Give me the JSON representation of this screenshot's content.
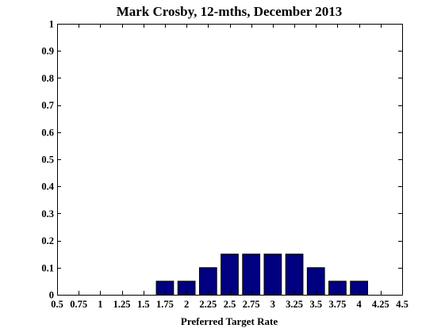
{
  "chart_data": {
    "type": "bar",
    "title": "Mark Crosby, 12-mths, December 2013",
    "xlabel": "Preferred Target Rate",
    "ylabel": "",
    "xlim": [
      0.5,
      4.5
    ],
    "ylim": [
      0,
      1
    ],
    "xticks": [
      0.5,
      0.75,
      1,
      1.25,
      1.5,
      1.75,
      2,
      2.25,
      2.5,
      2.75,
      3,
      3.25,
      3.5,
      3.75,
      4,
      4.25,
      4.5
    ],
    "xtick_labels": [
      "0.5",
      "0.75",
      "1",
      "1.25",
      "1.5",
      "1.75",
      "2",
      "2.25",
      "2.5",
      "2.75",
      "3",
      "3.25",
      "3.5",
      "3.75",
      "4",
      "4.25",
      "4.5"
    ],
    "yticks": [
      0,
      0.1,
      0.2,
      0.3,
      0.4,
      0.5,
      0.6,
      0.7,
      0.8,
      0.9,
      1
    ],
    "ytick_labels": [
      "0",
      "0.1",
      "0.2",
      "0.3",
      "0.4",
      "0.5",
      "0.6",
      "0.7",
      "0.8",
      "0.9",
      "1"
    ],
    "categories": [
      1.75,
      2,
      2.25,
      2.5,
      2.75,
      3,
      3.25,
      3.5,
      3.75,
      4
    ],
    "values": [
      0.05,
      0.05,
      0.1,
      0.15,
      0.15,
      0.15,
      0.15,
      0.1,
      0.05,
      0.05
    ],
    "bar_color": "#000080",
    "bar_edge_color": "#000000",
    "grid": false,
    "box": true
  }
}
